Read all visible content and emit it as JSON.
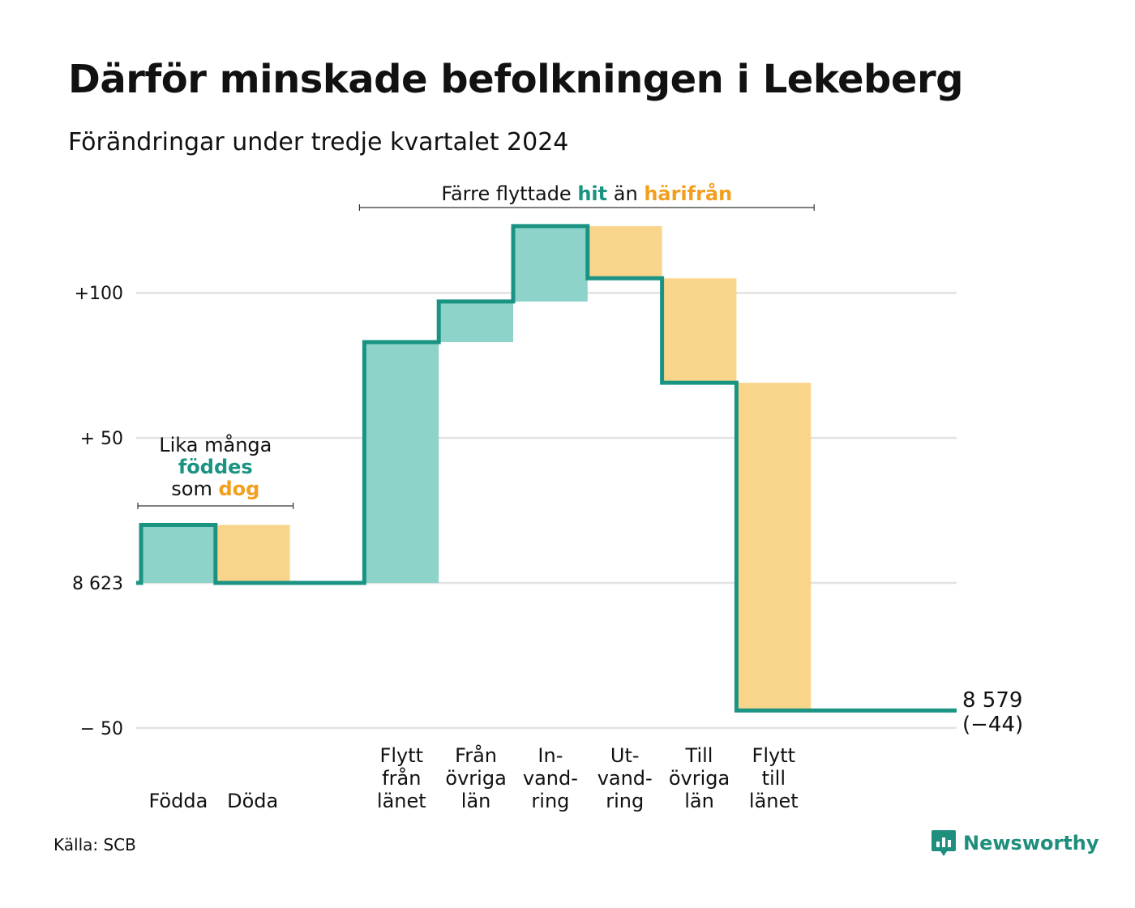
{
  "title": "Därför minskade befolkningen i Lekeberg",
  "subtitle": "Förändringar under tredje kvartalet 2024",
  "source": "Källa: SCB",
  "brand": "Newsworthy",
  "colors": {
    "inflow": "#8dd3c9",
    "outflow": "#f9d58c",
    "line": "#1a9383",
    "accent_hit": "#1a9383",
    "accent_away": "#f29f1e",
    "grid": "#e2e2e2"
  },
  "chart_data": {
    "type": "waterfall",
    "baseline": 8623,
    "y_ticks": [
      {
        "value": 100,
        "label": "+100"
      },
      {
        "value": 50,
        "label": "+ 50"
      },
      {
        "value": 0,
        "label": "8 623"
      },
      {
        "value": -50,
        "label": "−  50"
      }
    ],
    "ylim": [
      -50,
      124
    ],
    "grid": true,
    "steps": [
      {
        "label": [
          "Födda"
        ],
        "change": 20,
        "kind": "inflow"
      },
      {
        "label": [
          "Döda"
        ],
        "change": -20,
        "kind": "outflow"
      },
      {
        "label": [
          ""
        ],
        "change": 0,
        "kind": "gap"
      },
      {
        "label": [
          "Flytt",
          "från",
          "länet"
        ],
        "change": 83,
        "kind": "inflow"
      },
      {
        "label": [
          "Från",
          "övriga",
          "län"
        ],
        "change": 14,
        "kind": "inflow"
      },
      {
        "label": [
          "In-",
          "vand-",
          "ring"
        ],
        "change": 26,
        "kind": "inflow"
      },
      {
        "label": [
          "Ut-",
          "vand-",
          "ring"
        ],
        "change": -18,
        "kind": "outflow"
      },
      {
        "label": [
          "Till",
          "övriga",
          "län"
        ],
        "change": -36,
        "kind": "outflow"
      },
      {
        "label": [
          "Flytt",
          "till",
          "länet"
        ],
        "change": -113,
        "kind": "outflow"
      }
    ],
    "end_value": "8 579",
    "end_change": "(−44)",
    "annotations": [
      {
        "segments": [
          {
            "text": "Lika många",
            "style": "plain"
          }
        ],
        "segments2": [
          {
            "text": "föddes",
            "style": "hit"
          }
        ],
        "segments3": [
          {
            "text": "som ",
            "style": "plain"
          },
          {
            "text": "dog",
            "style": "away"
          }
        ],
        "from_step": 0,
        "to_step": 1
      },
      {
        "segments": [
          {
            "text": "Färre flyttade ",
            "style": "plain"
          },
          {
            "text": "hit",
            "style": "hit"
          },
          {
            "text": " än ",
            "style": "plain"
          },
          {
            "text": "härifrån",
            "style": "away"
          }
        ],
        "from_step": 3,
        "to_step": 8
      }
    ]
  }
}
